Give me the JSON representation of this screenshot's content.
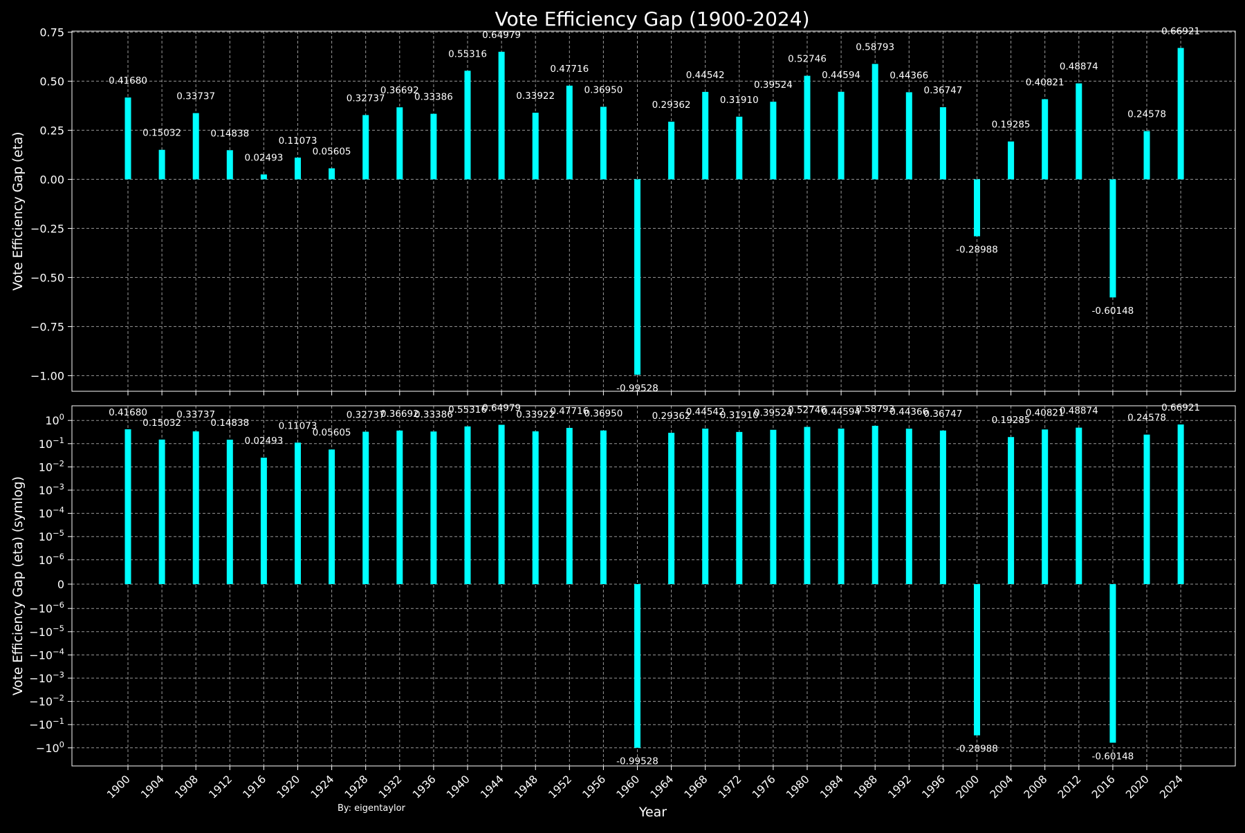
{
  "title": "Vote Efficiency Gap (1900-2024)",
  "credit": "By: eigentaylor",
  "colors": {
    "background": "#000000",
    "bar": "#00ffff",
    "text": "#ffffff",
    "grid": "#9a9a9a",
    "spine": "#ffffff"
  },
  "chart_data": [
    {
      "type": "bar",
      "panel": "top",
      "title": "Vote Efficiency Gap (1900-2024)",
      "xlabel": "",
      "ylabel": "Vote Efficiency Gap (eta)",
      "yscale": "linear",
      "ylim": [
        -1.0795,
        0.755
      ],
      "yticks": [
        0.75,
        0.5,
        0.25,
        0.0,
        -0.25,
        -0.5,
        -0.75,
        -1.0
      ],
      "ytick_labels": [
        "0.75",
        "0.50",
        "0.25",
        "0.00",
        "−0.25",
        "−0.50",
        "−0.75",
        "−1.00"
      ],
      "grid": true,
      "categories": [
        "1900",
        "1904",
        "1908",
        "1912",
        "1916",
        "1920",
        "1924",
        "1928",
        "1932",
        "1936",
        "1940",
        "1944",
        "1948",
        "1952",
        "1956",
        "1960",
        "1964",
        "1968",
        "1972",
        "1976",
        "1980",
        "1984",
        "1988",
        "1992",
        "1996",
        "2000",
        "2004",
        "2008",
        "2012",
        "2016",
        "2020",
        "2024"
      ],
      "values": [
        0.4168,
        0.15032,
        0.33737,
        0.14838,
        0.02493,
        0.11073,
        0.05605,
        0.32737,
        0.36692,
        0.33386,
        0.55316,
        0.64979,
        0.33922,
        0.47716,
        0.3695,
        -0.99528,
        0.29362,
        0.44542,
        0.3191,
        0.39524,
        0.52746,
        0.44594,
        0.58793,
        0.44366,
        0.36747,
        -0.28988,
        0.19285,
        0.40821,
        0.48874,
        -0.60148,
        0.24578,
        0.66921
      ],
      "data_labels": [
        "0.41680",
        "0.15032",
        "0.33737",
        "0.14838",
        "0.02493",
        "0.11073",
        "0.05605",
        "0.32737",
        "0.36692",
        "0.33386",
        "0.55316",
        "0.64979",
        "0.33922",
        "0.47716",
        "0.36950",
        "-0.99528",
        "0.29362",
        "0.44542",
        "0.31910",
        "0.39524",
        "0.52746",
        "0.44594",
        "0.58793",
        "0.44366",
        "0.36747",
        "-0.28988",
        "0.19285",
        "0.40821",
        "0.48874",
        "-0.60148",
        "0.24578",
        "0.66921"
      ]
    },
    {
      "type": "bar",
      "panel": "bottom",
      "xlabel": "Year",
      "ylabel": "Vote Efficiency Gap (eta) (symlog)",
      "yscale": "symlog",
      "linthresh": 1e-06,
      "yticks": [
        1,
        0.1,
        0.01,
        0.001,
        0.0001,
        1e-05,
        1e-06,
        0,
        -1e-06,
        -1e-05,
        -0.0001,
        -0.001,
        -0.01,
        -0.1,
        -1
      ],
      "ytick_labels": [
        {
          "base": "10",
          "exp": "0"
        },
        {
          "base": "10",
          "exp": "−1"
        },
        {
          "base": "10",
          "exp": "−2"
        },
        {
          "base": "10",
          "exp": "−3"
        },
        {
          "base": "10",
          "exp": "−4"
        },
        {
          "base": "10",
          "exp": "−5"
        },
        {
          "base": "10",
          "exp": "−6"
        },
        {
          "base": "0",
          "exp": ""
        },
        {
          "base": "−10",
          "exp": "−6"
        },
        {
          "base": "−10",
          "exp": "−5"
        },
        {
          "base": "−10",
          "exp": "−4"
        },
        {
          "base": "−10",
          "exp": "−3"
        },
        {
          "base": "−10",
          "exp": "−2"
        },
        {
          "base": "−10",
          "exp": "−1"
        },
        {
          "base": "−10",
          "exp": "0"
        }
      ],
      "grid": true,
      "categories": [
        "1900",
        "1904",
        "1908",
        "1912",
        "1916",
        "1920",
        "1924",
        "1928",
        "1932",
        "1936",
        "1940",
        "1944",
        "1948",
        "1952",
        "1956",
        "1960",
        "1964",
        "1968",
        "1972",
        "1976",
        "1980",
        "1984",
        "1988",
        "1992",
        "1996",
        "2000",
        "2004",
        "2008",
        "2012",
        "2016",
        "2020",
        "2024"
      ],
      "values": [
        0.4168,
        0.15032,
        0.33737,
        0.14838,
        0.02493,
        0.11073,
        0.05605,
        0.32737,
        0.36692,
        0.33386,
        0.55316,
        0.64979,
        0.33922,
        0.47716,
        0.3695,
        -0.99528,
        0.29362,
        0.44542,
        0.3191,
        0.39524,
        0.52746,
        0.44594,
        0.58793,
        0.44366,
        0.36747,
        -0.28988,
        0.19285,
        0.40821,
        0.48874,
        -0.60148,
        0.24578,
        0.66921
      ],
      "data_labels": [
        "0.41680",
        "0.15032",
        "0.33737",
        "0.14838",
        "0.02493",
        "0.11073",
        "0.05605",
        "0.32737",
        "0.36692",
        "0.33386",
        "0.55316",
        "0.64979",
        "0.33922",
        "0.47716",
        "0.36950",
        "-0.99528",
        "0.29362",
        "0.44542",
        "0.31910",
        "0.39524",
        "0.52746",
        "0.44594",
        "0.58793",
        "0.44366",
        "0.36747",
        "-0.28988",
        "0.19285",
        "0.40821",
        "0.48874",
        "-0.60148",
        "0.24578",
        "0.66921"
      ]
    }
  ]
}
